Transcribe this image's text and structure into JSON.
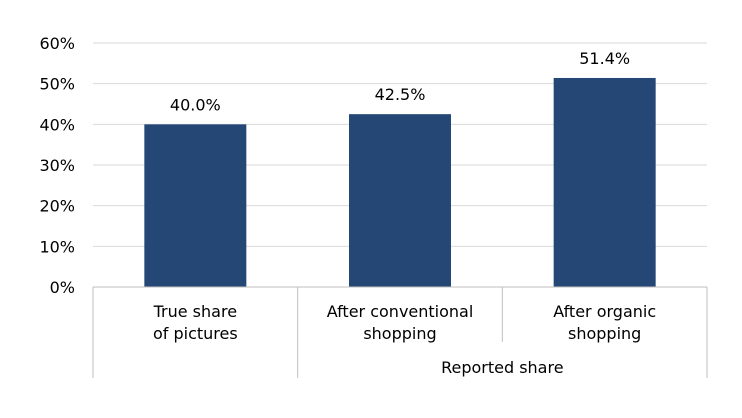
{
  "chart_data": {
    "type": "bar",
    "categories": [
      [
        "True share",
        "of pictures"
      ],
      [
        "After conventional",
        "shopping"
      ],
      [
        "After organic",
        "shopping"
      ]
    ],
    "values": [
      40.0,
      42.5,
      51.4
    ],
    "data_labels": [
      "40.0%",
      "42.5%",
      "51.4%"
    ],
    "group_label": "Reported share",
    "group_categories": [
      1,
      2
    ],
    "ylim": [
      0,
      60
    ],
    "yticks": [
      0,
      10,
      20,
      30,
      40,
      50,
      60
    ],
    "ytick_labels": [
      "0%",
      "10%",
      "20%",
      "30%",
      "40%",
      "50%",
      "60%"
    ],
    "grid": true,
    "legend": "none",
    "bar_color": "#244775"
  }
}
